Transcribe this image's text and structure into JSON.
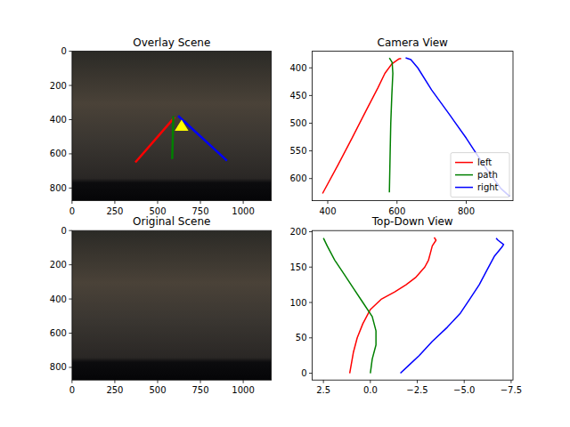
{
  "chart_data": [
    {
      "type": "image",
      "title": "Overlay Scene",
      "xlim": [
        0,
        1164
      ],
      "ylim": [
        874,
        0
      ],
      "xticks": [
        0,
        250,
        500,
        750,
        1000
      ],
      "yticks": [
        0,
        200,
        400,
        600,
        800
      ],
      "series": [
        {
          "color": "#ff0000",
          "x": [
            370,
            600
          ],
          "values": [
            650,
            385
          ]
        },
        {
          "color": "#008000",
          "x": [
            585,
            592
          ],
          "values": [
            630,
            380
          ]
        },
        {
          "color": "#0000ff",
          "x": [
            620,
            905
          ],
          "values": [
            378,
            640
          ]
        },
        {
          "type": "polygon",
          "color": "#ffff00",
          "x": [
            640,
            600,
            680
          ],
          "values": [
            400,
            465,
            465
          ]
        }
      ]
    },
    {
      "type": "line",
      "title": "Camera View",
      "xlim": [
        355,
        935
      ],
      "ylim": [
        640,
        370
      ],
      "xticks": [
        400,
        600,
        800
      ],
      "yticks": [
        400,
        450,
        500,
        550,
        600
      ],
      "legend": "lower right",
      "series": [
        {
          "name": "left",
          "color": "#ff0000",
          "x": [
            385,
            430,
            470,
            510,
            545,
            565,
            585,
            605,
            612
          ],
          "values": [
            627,
            575,
            527,
            478,
            436,
            410,
            393,
            384,
            383
          ]
        },
        {
          "name": "path",
          "color": "#008000",
          "x": [
            578,
            580,
            582,
            585,
            588,
            586,
            578
          ],
          "values": [
            625,
            560,
            500,
            450,
            410,
            390,
            382
          ]
        },
        {
          "name": "right",
          "color": "#0000ff",
          "x": [
            625,
            640,
            660,
            700,
            750,
            800,
            850,
            900,
            925
          ],
          "values": [
            382,
            385,
            400,
            440,
            483,
            527,
            575,
            618,
            632
          ]
        }
      ]
    },
    {
      "type": "image",
      "title": "Original Scene",
      "xlim": [
        0,
        1164
      ],
      "ylim": [
        874,
        0
      ],
      "xticks": [
        0,
        250,
        500,
        750,
        1000
      ],
      "yticks": [
        0,
        200,
        400,
        600,
        800
      ],
      "series": []
    },
    {
      "type": "line",
      "title": "Top-Down View",
      "xlim": [
        3.1,
        -7.6
      ],
      "ylim": [
        -9.6,
        201.6
      ],
      "xticks": [
        {
          "value": 2.5,
          "label": "2.5"
        },
        {
          "value": 0,
          "label": "0.0"
        },
        {
          "value": -2.5,
          "label": "−2.5"
        },
        {
          "value": -5,
          "label": "−5.0"
        },
        {
          "value": -7.5,
          "label": "−7.5"
        }
      ],
      "yticks": [
        0,
        50,
        100,
        150,
        200
      ],
      "series": [
        {
          "name": "left",
          "color": "#ff0000",
          "x": [
            1.1,
            1.0,
            0.9,
            0.7,
            0.4,
            0.0,
            -0.6,
            -1.3,
            -1.9,
            -2.4,
            -2.9,
            -3.1,
            -3.2,
            -3.3,
            -3.5,
            -3.4
          ],
          "values": [
            0,
            15,
            30,
            50,
            70,
            90,
            105,
            115,
            125,
            135,
            150,
            160,
            170,
            180,
            188,
            192
          ]
        },
        {
          "name": "path",
          "color": "#008000",
          "x": [
            0.0,
            -0.1,
            -0.3,
            -0.3,
            -0.1,
            0.4,
            0.9,
            1.4,
            1.9,
            2.3,
            2.5
          ],
          "values": [
            0,
            20,
            40,
            60,
            80,
            100,
            120,
            140,
            160,
            180,
            191
          ]
        },
        {
          "name": "right",
          "color": "#0000ff",
          "x": [
            -1.6,
            -2.0,
            -2.6,
            -3.3,
            -4.1,
            -4.8,
            -5.3,
            -5.8,
            -6.2,
            -6.6,
            -7.0,
            -7.1,
            -6.8,
            -6.7
          ],
          "values": [
            0,
            10,
            25,
            45,
            65,
            85,
            105,
            125,
            145,
            165,
            178,
            182,
            188,
            191
          ]
        }
      ]
    }
  ]
}
